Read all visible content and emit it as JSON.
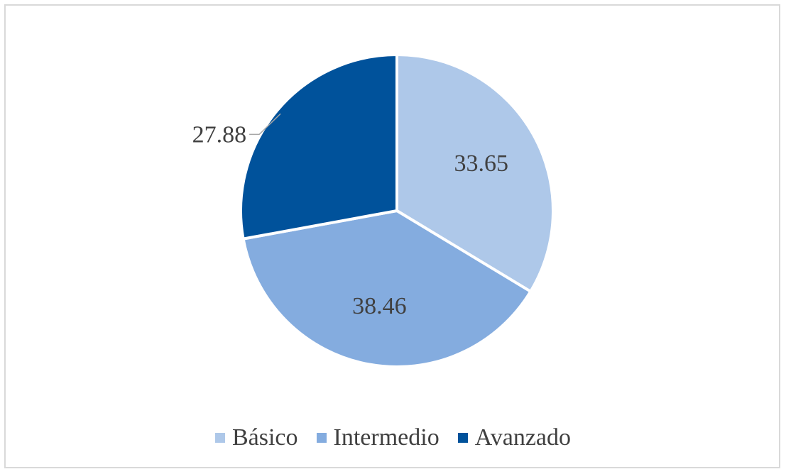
{
  "chart_data": {
    "type": "pie",
    "title": "",
    "start_angle_deg": 0,
    "direction": "clockwise",
    "legend_position": "bottom",
    "slices": [
      {
        "name": "Básico",
        "value": 33.65,
        "label": "33.65",
        "color": "#aec8e9"
      },
      {
        "name": "Intermedio",
        "value": 38.46,
        "label": "38.46",
        "color": "#84acdf"
      },
      {
        "name": "Avanzado",
        "value": 27.88,
        "label": "27.88",
        "color": "#00529b"
      }
    ]
  }
}
